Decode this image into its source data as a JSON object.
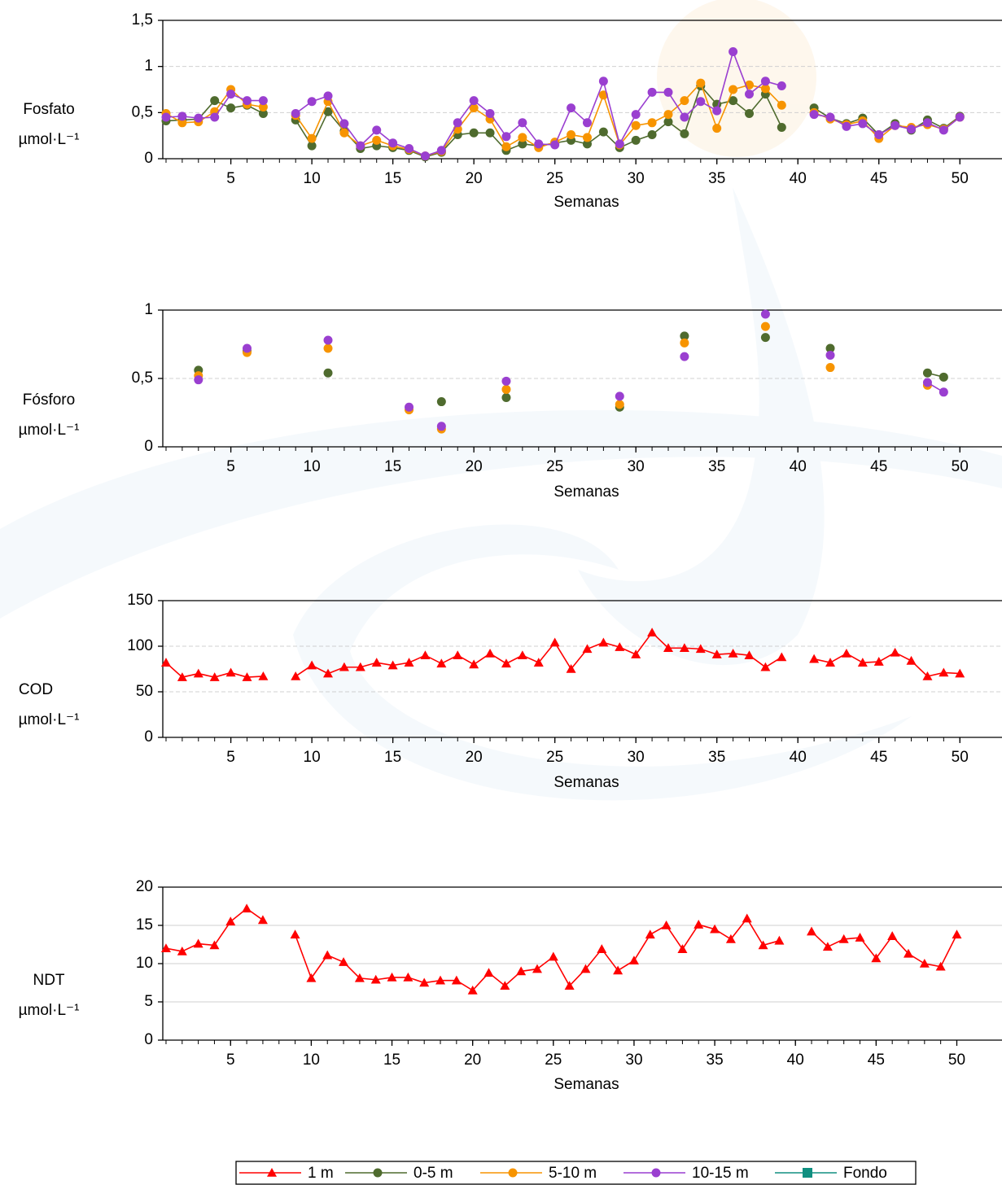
{
  "chart_data": [
    {
      "type": "line",
      "ylabel": "Fosfato",
      "yunit": "µmol·L⁻¹",
      "xlabel": "Semanas",
      "x": [
        1,
        2,
        3,
        4,
        5,
        6,
        7,
        8,
        9,
        10,
        11,
        12,
        13,
        14,
        15,
        16,
        17,
        18,
        19,
        20,
        21,
        22,
        23,
        24,
        25,
        26,
        27,
        28,
        29,
        30,
        31,
        32,
        33,
        34,
        35,
        36,
        37,
        38,
        39,
        40,
        41,
        42,
        43,
        44,
        45,
        46,
        47,
        48,
        49,
        50
      ],
      "xlim": [
        0.8,
        52.6
      ],
      "xticks": [
        5,
        10,
        15,
        20,
        25,
        30,
        35,
        40,
        45,
        50
      ],
      "ylim": [
        0,
        1.5
      ],
      "yticks": [
        0,
        {
          "value": 0.5,
          "label": "0,5"
        },
        1,
        {
          "value": 1.5,
          "label": "1,5"
        }
      ],
      "grid": true,
      "grid_style": "dashed",
      "series": [
        {
          "name": "0-5 m",
          "color": "#4f6b2e",
          "marker": "circle",
          "values": [
            0.41,
            0.42,
            0.43,
            0.63,
            0.55,
            0.58,
            0.49,
            null,
            0.42,
            0.14,
            0.51,
            0.3,
            0.11,
            0.14,
            0.12,
            0.09,
            0.02,
            0.07,
            0.26,
            0.28,
            0.28,
            0.09,
            0.16,
            0.14,
            0.17,
            0.2,
            0.16,
            0.29,
            0.12,
            0.2,
            0.26,
            0.4,
            0.27,
            0.79,
            0.59,
            0.63,
            0.49,
            0.7,
            0.34,
            null,
            0.55,
            0.44,
            0.38,
            0.44,
            0.26,
            0.38,
            0.31,
            0.42,
            0.33,
            0.46
          ]
        },
        {
          "name": "5-10 m",
          "color": "#f79400",
          "marker": "circle",
          "values": [
            0.49,
            0.39,
            0.4,
            0.51,
            0.75,
            0.59,
            0.56,
            null,
            0.47,
            0.22,
            0.62,
            0.28,
            0.14,
            0.2,
            0.14,
            0.1,
            0.03,
            0.08,
            0.32,
            0.55,
            0.43,
            0.13,
            0.23,
            0.12,
            0.18,
            0.26,
            0.23,
            0.69,
            0.15,
            0.36,
            0.39,
            0.48,
            0.63,
            0.82,
            0.33,
            0.75,
            0.8,
            0.76,
            0.58,
            null,
            0.5,
            0.43,
            0.37,
            0.41,
            0.22,
            0.36,
            0.34,
            0.37,
            0.32,
            0.45
          ]
        },
        {
          "name": "10-15 m",
          "color": "#9a3fd0",
          "marker": "circle",
          "values": [
            0.45,
            0.46,
            0.44,
            0.45,
            0.7,
            0.63,
            0.63,
            null,
            0.49,
            0.62,
            0.68,
            0.38,
            0.14,
            0.31,
            0.17,
            0.11,
            0.03,
            0.09,
            0.39,
            0.63,
            0.49,
            0.24,
            0.39,
            0.16,
            0.15,
            0.55,
            0.39,
            0.84,
            0.16,
            0.48,
            0.72,
            0.72,
            0.45,
            0.62,
            0.52,
            1.16,
            0.7,
            0.84,
            0.79,
            null,
            0.48,
            0.45,
            0.35,
            0.38,
            0.26,
            0.36,
            0.32,
            0.39,
            0.31,
            0.45
          ]
        }
      ]
    },
    {
      "type": "line",
      "ylabel": "Fósforo",
      "yunit": "µmol·L⁻¹",
      "xlabel": "Semanas",
      "x": [
        1,
        2,
        3,
        4,
        5,
        6,
        7,
        8,
        9,
        10,
        11,
        12,
        13,
        14,
        15,
        16,
        17,
        18,
        19,
        20,
        21,
        22,
        23,
        24,
        25,
        26,
        27,
        28,
        29,
        30,
        31,
        32,
        33,
        34,
        35,
        36,
        37,
        38,
        39,
        40,
        41,
        42,
        43,
        44,
        45,
        46,
        47,
        48,
        49,
        50
      ],
      "xlim": [
        0.8,
        52.6
      ],
      "xticks": [
        5,
        10,
        15,
        20,
        25,
        30,
        35,
        40,
        45,
        50
      ],
      "ylim": [
        0,
        1
      ],
      "yticks": [
        0,
        {
          "value": 0.5,
          "label": "0,5"
        },
        1
      ],
      "grid": true,
      "grid_style": "dashed",
      "series": [
        {
          "name": "0-5 m",
          "color": "#4f6b2e",
          "marker": "circle",
          "values": [
            null,
            null,
            0.56,
            null,
            null,
            0.7,
            null,
            null,
            null,
            null,
            0.54,
            null,
            null,
            null,
            null,
            null,
            null,
            0.33,
            null,
            null,
            null,
            0.36,
            null,
            null,
            null,
            null,
            null,
            null,
            0.29,
            null,
            null,
            null,
            0.81,
            null,
            null,
            null,
            null,
            0.8,
            null,
            null,
            null,
            0.72,
            null,
            null,
            null,
            null,
            null,
            0.54,
            0.51,
            null
          ]
        },
        {
          "name": "5-10 m",
          "color": "#f79400",
          "marker": "circle",
          "values": [
            null,
            null,
            0.52,
            null,
            null,
            0.69,
            null,
            null,
            null,
            null,
            0.72,
            null,
            null,
            null,
            null,
            0.27,
            null,
            0.13,
            null,
            null,
            null,
            0.42,
            null,
            null,
            null,
            null,
            null,
            null,
            0.31,
            null,
            null,
            null,
            0.76,
            null,
            null,
            null,
            null,
            0.88,
            null,
            null,
            null,
            0.58,
            null,
            null,
            null,
            null,
            null,
            0.45,
            null,
            null
          ]
        },
        {
          "name": "10-15 m",
          "color": "#9a3fd0",
          "marker": "circle",
          "values": [
            null,
            null,
            0.49,
            null,
            null,
            0.72,
            null,
            null,
            null,
            null,
            0.78,
            null,
            null,
            null,
            null,
            0.29,
            null,
            0.15,
            null,
            null,
            null,
            0.48,
            null,
            null,
            null,
            null,
            null,
            null,
            0.37,
            null,
            null,
            null,
            0.66,
            null,
            null,
            null,
            null,
            0.97,
            null,
            null,
            null,
            0.67,
            null,
            null,
            null,
            null,
            null,
            0.47,
            0.4,
            null
          ]
        }
      ]
    },
    {
      "type": "line",
      "ylabel": "COD",
      "yunit": "µmol·L⁻¹",
      "xlabel": "Semanas",
      "x": [
        1,
        2,
        3,
        4,
        5,
        6,
        7,
        8,
        9,
        10,
        11,
        12,
        13,
        14,
        15,
        16,
        17,
        18,
        19,
        20,
        21,
        22,
        23,
        24,
        25,
        26,
        27,
        28,
        29,
        30,
        31,
        32,
        33,
        34,
        35,
        36,
        37,
        38,
        39,
        40,
        41,
        42,
        43,
        44,
        45,
        46,
        47,
        48,
        49,
        50
      ],
      "xlim": [
        0.8,
        52.6
      ],
      "xticks": [
        5,
        10,
        15,
        20,
        25,
        30,
        35,
        40,
        45,
        50
      ],
      "ylim": [
        0,
        150
      ],
      "yticks": [
        0,
        50,
        100,
        150
      ],
      "grid": true,
      "grid_style": "dashed",
      "series": [
        {
          "name": "1 m",
          "color": "#ff0000",
          "marker": "triangle",
          "values": [
            82,
            66,
            70,
            66,
            71,
            66,
            67,
            null,
            67,
            79,
            70,
            77,
            77,
            82,
            79,
            82,
            90,
            81,
            90,
            80,
            92,
            81,
            90,
            82,
            104,
            75,
            97,
            104,
            99,
            91,
            115,
            98,
            98,
            97,
            91,
            92,
            90,
            77,
            88,
            null,
            86,
            82,
            92,
            82,
            83,
            93,
            84,
            67,
            71,
            70
          ]
        }
      ]
    },
    {
      "type": "line",
      "ylabel": "NDT",
      "yunit": "µmol·L⁻¹",
      "xlabel": "Semanas",
      "x": [
        1,
        2,
        3,
        4,
        5,
        6,
        7,
        8,
        9,
        10,
        11,
        12,
        13,
        14,
        15,
        16,
        17,
        18,
        19,
        20,
        21,
        22,
        23,
        24,
        25,
        26,
        27,
        28,
        29,
        30,
        31,
        32,
        33,
        34,
        35,
        36,
        37,
        38,
        39,
        40,
        41,
        42,
        43,
        44,
        45,
        46,
        47,
        48,
        49,
        50
      ],
      "xlim": [
        0.8,
        52.8
      ],
      "xticks": [
        5,
        10,
        15,
        20,
        25,
        30,
        35,
        40,
        45,
        50
      ],
      "ylim": [
        0,
        20
      ],
      "yticks": [
        0,
        5,
        10,
        15,
        20
      ],
      "grid": true,
      "grid_style": "solid",
      "series": [
        {
          "name": "1 m",
          "color": "#ff0000",
          "marker": "triangle",
          "values": [
            12,
            11.6,
            12.6,
            12.4,
            15.5,
            17.2,
            15.7,
            null,
            13.8,
            8.1,
            11.1,
            10.2,
            8.1,
            7.9,
            8.2,
            8.2,
            7.5,
            7.8,
            7.8,
            6.5,
            8.8,
            7.1,
            9.0,
            9.3,
            10.9,
            7.1,
            9.3,
            11.9,
            9.1,
            10.4,
            13.8,
            15,
            11.9,
            15.1,
            14.5,
            13.2,
            15.9,
            12.4,
            13,
            null,
            14.2,
            12.2,
            13.2,
            13.4,
            10.7,
            13.6,
            11.3,
            10,
            9.6,
            13.8
          ]
        }
      ]
    }
  ],
  "legend": [
    {
      "name": "1 m",
      "color": "#ff0000",
      "marker": "triangle"
    },
    {
      "name": "0-5 m",
      "color": "#4f6b2e",
      "marker": "circle"
    },
    {
      "name": "5-10 m",
      "color": "#f79400",
      "marker": "circle"
    },
    {
      "name": "10-15 m",
      "color": "#9a3fd0",
      "marker": "circle"
    },
    {
      "name": "Fondo",
      "color": "#108f80",
      "marker": "square"
    }
  ]
}
